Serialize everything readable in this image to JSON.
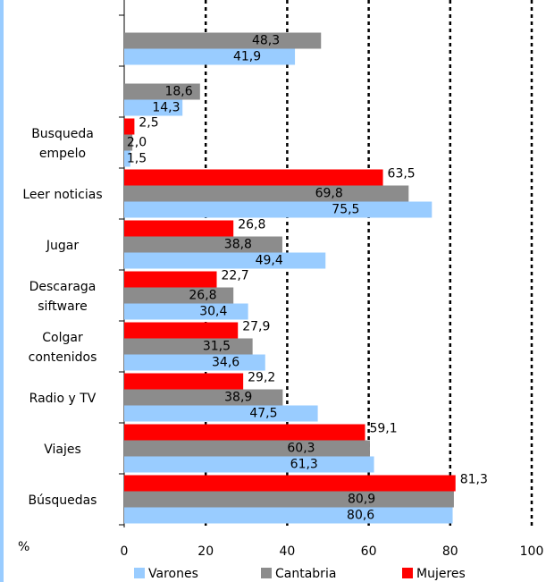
{
  "chart_data": {
    "type": "bar",
    "orientation": "horizontal",
    "categories": [
      null,
      null,
      "Busqueda empelo",
      "Leer noticias",
      "Jugar",
      "Descaraga siftware",
      "Colgar contenidos",
      "Radio y TV",
      "Viajes",
      "Búsquedas"
    ],
    "series": [
      {
        "name": "Varones",
        "color": "#99ccff",
        "values": [
          41.9,
          14.3,
          1.5,
          75.5,
          49.4,
          30.4,
          34.6,
          47.5,
          61.3,
          80.6
        ],
        "value_labels": [
          "41,9",
          "14,3",
          "1,5",
          "75,5",
          "49,4",
          "30,4",
          "34,6",
          "47,5",
          "61,3",
          "80,6"
        ]
      },
      {
        "name": "Cantabria",
        "color": "#8c8c8c",
        "values": [
          48.3,
          18.6,
          2.0,
          69.8,
          38.8,
          26.8,
          31.5,
          38.9,
          60.3,
          80.9
        ],
        "value_labels": [
          "48,3",
          "18,6",
          "2,0",
          "69,8",
          "38,8",
          "26,8",
          "31,5",
          "38,9",
          "60,3",
          "80,9"
        ]
      },
      {
        "name": "Mujeres",
        "color": "#ff0000",
        "values": [
          null,
          null,
          2.5,
          63.5,
          26.8,
          22.7,
          27.9,
          29.2,
          59.1,
          81.3
        ],
        "value_labels": [
          null,
          null,
          "2,5",
          "63,5",
          "26,8",
          "22,7",
          "27,9",
          "29,2",
          "59,1",
          "81,3"
        ]
      }
    ],
    "x_label": "%",
    "xlim": [
      0,
      100
    ],
    "xticks": [
      0,
      20,
      40,
      60,
      80,
      100
    ],
    "grid": true,
    "legend": "bottom"
  }
}
